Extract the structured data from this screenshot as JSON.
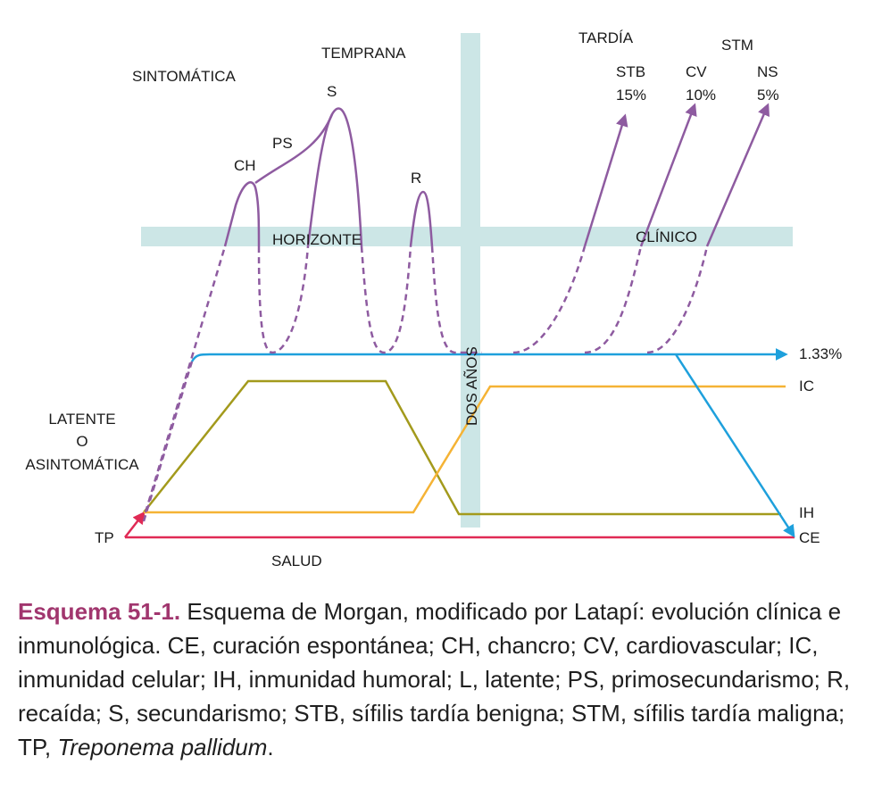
{
  "labels": {
    "sintomatica": "SINTOMÁTICA",
    "temprana": "TEMPRANA",
    "tardia": "TARDÍA",
    "stm": "STM",
    "stb": "STB",
    "stb_pct": "15%",
    "cv": "CV",
    "cv_pct": "10%",
    "ns": "NS",
    "ns_pct": "5%",
    "s": "S",
    "ps": "PS",
    "ch": "CH",
    "r": "R",
    "horizonte": "HORIZONTE",
    "clinico": "CLÍNICO",
    "dos_anos": "DOS AÑOS",
    "pct_133": "1.33%",
    "ic": "IC",
    "ih": "IH",
    "ce": "CE",
    "tp": "TP",
    "salud": "SALUD",
    "latente_1": "LATENTE",
    "latente_2": "O",
    "latente_3": "ASINTOMÁTICA"
  },
  "colors": {
    "purple": "#8e5ba0",
    "blue": "#1ea0dc",
    "orange": "#f5b335",
    "olive": "#a39a1c",
    "red": "#e02a55",
    "band": "#cce6e6",
    "caption_label": "#a1366e"
  },
  "caption": {
    "label": "Esquema 51-1.",
    "text": "Esquema de Morgan, modificado por Latapí: evolución clínica e inmunológica. CE, curación espontánea; CH, chancro; CV, cardiovascular; IC, inmunidad celular; IH, inmunidad humoral; L, latente; PS, primosecundarismo; R, recaída; S, secundarismo; STB, sífilis tardía benigna; STM, sífilis tardía maligna; TP, ",
    "italic": "Treponema pallidum",
    "end": "."
  }
}
